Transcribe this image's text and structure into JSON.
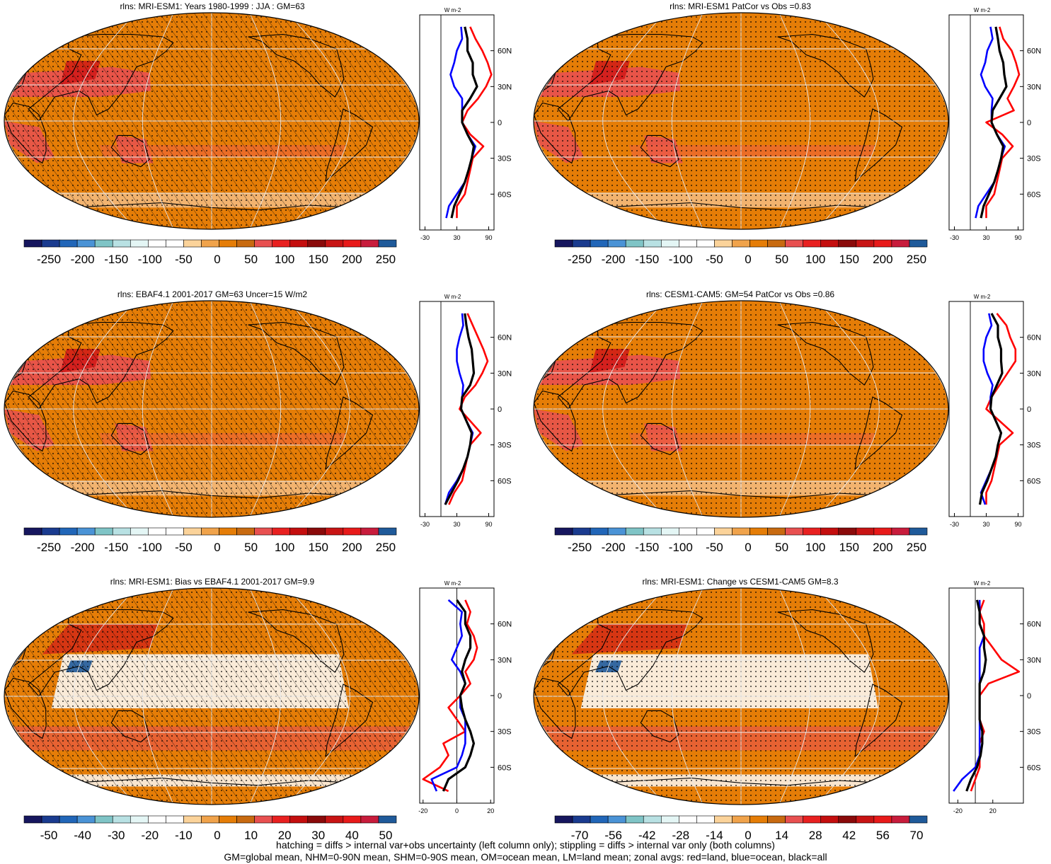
{
  "units_label": "W m-2",
  "lat_ticks": [
    "60N",
    "30N",
    "0",
    "30S",
    "60S"
  ],
  "colors": {
    "ocean_fill": "#E57D07",
    "land_outline": "#000000",
    "grid": "#E8E8E8",
    "zonal_land": "#FF0000",
    "zonal_ocean": "#0000FF",
    "zonal_all": "#000000"
  },
  "palettes": {
    "abs": [
      "#16165E",
      "#1A3B8F",
      "#2166B8",
      "#4A93D6",
      "#7FC4C6",
      "#B8E1E3",
      "#E4F6F5",
      "#FFFFFF",
      "#FFFFFF",
      "#FBD39A",
      "#F0A34B",
      "#E57D07",
      "#C86A10",
      "#E85050",
      "#E82020",
      "#C40E0E",
      "#8A0A0A",
      "#C81414",
      "#E81A1A",
      "#C81C3C",
      "#1F5A9A"
    ],
    "diff": [
      "#16165E",
      "#1A3B8F",
      "#2166B8",
      "#4A93D6",
      "#7FC4C6",
      "#B8E1E3",
      "#E4F6F5",
      "#FFFFFF",
      "#FFFFFF",
      "#FBD39A",
      "#F0A34B",
      "#E57D07",
      "#C86A10",
      "#E85050",
      "#E82020",
      "#C40E0E",
      "#8A0A0A",
      "#C81414",
      "#E81A1A",
      "#C81C3C",
      "#1F5A9A"
    ]
  },
  "panels": [
    {
      "title": "rlns: MRI-ESM1: Years 1980-1999 : JJA : GM=63",
      "hatched": true,
      "style": "abs",
      "cbar_labels": [
        "-250",
        "-200",
        "-150",
        "-100",
        "-50",
        "0",
        "50",
        "100",
        "150",
        "200",
        "250"
      ],
      "zonal_ticks": [
        "-30",
        "30",
        "90"
      ],
      "zonal_xlim": [
        -40,
        100
      ]
    },
    {
      "title": "rlns: MRI-ESM1 PatCor vs Obs =0.83",
      "hatched": false,
      "style": "abs",
      "cbar_labels": [
        "-250",
        "-200",
        "-150",
        "-100",
        "-50",
        "0",
        "50",
        "100",
        "150",
        "200",
        "250"
      ],
      "zonal_ticks": [
        "-30",
        "30",
        "90"
      ],
      "zonal_xlim": [
        -40,
        100
      ]
    },
    {
      "title": "rlns: EBAF4.1 2001-2017 GM=63 Uncer=15 W/m2",
      "hatched": true,
      "style": "abs",
      "cbar_labels": [
        "-250",
        "-200",
        "-150",
        "-100",
        "-50",
        "0",
        "50",
        "100",
        "150",
        "200",
        "250"
      ],
      "zonal_ticks": [
        "-30",
        "30",
        "90"
      ],
      "zonal_xlim": [
        -40,
        100
      ]
    },
    {
      "title": "rlns: CESM1-CAM5: GM=54 PatCor vs Obs =0.86",
      "hatched": false,
      "style": "abs",
      "cbar_labels": [
        "-250",
        "-200",
        "-150",
        "-100",
        "-50",
        "0",
        "50",
        "100",
        "150",
        "200",
        "250"
      ],
      "zonal_ticks": [
        "-30",
        "30",
        "90"
      ],
      "zonal_xlim": [
        -40,
        100
      ]
    },
    {
      "title": "rlns: MRI-ESM1: Bias vs EBAF4.1 2001-2017 GM=9.9",
      "hatched": true,
      "style": "diff",
      "cbar_labels": [
        "-50",
        "-40",
        "-30",
        "-20",
        "-10",
        "0",
        "10",
        "20",
        "30",
        "40",
        "50"
      ],
      "zonal_ticks": [
        "-20",
        "0",
        "20"
      ],
      "zonal_xlim": [
        -22,
        22
      ]
    },
    {
      "title": "rlns: MRI-ESM1: Change vs CESM1-CAM5 GM=8.3",
      "hatched": false,
      "style": "diff",
      "cbar_labels": [
        "-70",
        "-56",
        "-42",
        "-28",
        "-14",
        "0",
        "14",
        "28",
        "42",
        "56",
        "70"
      ],
      "zonal_ticks": [
        "-20",
        "20"
      ],
      "zonal_xlim": [
        -30,
        55
      ]
    }
  ],
  "chart_data": [
    {
      "type": "line",
      "title": "rlns: MRI-ESM1: Years 1980-1999 : JJA : GM=63",
      "xlabel": "W m-2",
      "ylabel": "",
      "x_ticks": [
        "-30",
        "30",
        "90"
      ],
      "y_ticks": [
        "60N",
        "30N",
        "0",
        "30S",
        "60S"
      ],
      "ylim": [
        -90,
        90
      ],
      "series": [
        {
          "lat": [
            80,
            70,
            60,
            50,
            40,
            30,
            20,
            10,
            0,
            -10,
            -20,
            -30,
            -40,
            -50,
            -60,
            -70,
            -80
          ],
          "values": [
            55,
            65,
            78,
            88,
            95,
            85,
            70,
            50,
            40,
            55,
            80,
            60,
            55,
            50,
            45,
            30,
            30
          ]
        },
        {
          "lat": [
            80,
            70,
            60,
            50,
            40,
            30,
            20,
            10,
            0,
            -10,
            -20,
            -30,
            -40,
            -50,
            -60,
            -70,
            -80
          ],
          "values": [
            38,
            40,
            30,
            25,
            18,
            25,
            40,
            40,
            40,
            50,
            65,
            58,
            52,
            45,
            30,
            15,
            10
          ]
        },
        {
          "lat": [
            80,
            70,
            60,
            50,
            40,
            30,
            20,
            10,
            0,
            -10,
            -20,
            -30,
            -40,
            -50,
            -60,
            -70,
            -80
          ],
          "values": [
            45,
            50,
            50,
            60,
            60,
            68,
            55,
            40,
            40,
            50,
            62,
            58,
            52,
            45,
            35,
            25,
            20
          ]
        }
      ]
    },
    {
      "type": "line",
      "title": "rlns: MRI-ESM1 PatCor vs Obs =0.83",
      "xlabel": "W m-2",
      "ylabel": "",
      "x_ticks": [
        "-30",
        "30",
        "90"
      ],
      "y_ticks": [
        "60N",
        "30N",
        "0",
        "30S",
        "60S"
      ],
      "ylim": [
        -90,
        90
      ],
      "series": [
        {
          "lat": [
            80,
            70,
            60,
            50,
            40,
            30,
            20,
            10,
            0,
            -10,
            -20,
            -30,
            -40,
            -50,
            -60,
            -70,
            -80
          ],
          "values": [
            55,
            62,
            78,
            86,
            92,
            82,
            70,
            82,
            30,
            60,
            80,
            60,
            55,
            50,
            45,
            30,
            30
          ]
        },
        {
          "lat": [
            80,
            70,
            60,
            50,
            40,
            30,
            20,
            10,
            0,
            -10,
            -20,
            -30,
            -40,
            -50,
            -60,
            -70,
            -80
          ],
          "values": [
            38,
            42,
            32,
            28,
            20,
            28,
            42,
            40,
            40,
            50,
            65,
            58,
            52,
            45,
            30,
            15,
            10
          ]
        },
        {
          "lat": [
            80,
            70,
            60,
            50,
            40,
            30,
            20,
            10,
            0,
            -10,
            -20,
            -30,
            -40,
            -50,
            -60,
            -70,
            -80
          ],
          "values": [
            48,
            52,
            55,
            62,
            64,
            68,
            55,
            42,
            40,
            50,
            62,
            58,
            52,
            45,
            35,
            25,
            20
          ]
        }
      ]
    },
    {
      "type": "line",
      "title": "rlns: EBAF4.1 2001-2017 GM=63 Uncer=15 W/m2",
      "xlabel": "W m-2",
      "ylabel": "",
      "x_ticks": [
        "-30",
        "30",
        "90"
      ],
      "y_ticks": [
        "60N",
        "30N",
        "0",
        "30S",
        "60S"
      ],
      "ylim": [
        -90,
        90
      ],
      "series": [
        {
          "lat": [
            80,
            70,
            60,
            50,
            40,
            30,
            20,
            10,
            0,
            -10,
            -20,
            -30,
            -40,
            -50,
            -60,
            -70,
            -80
          ],
          "values": [
            50,
            60,
            70,
            80,
            88,
            78,
            65,
            45,
            35,
            55,
            75,
            55,
            50,
            45,
            40,
            25,
            15
          ]
        },
        {
          "lat": [
            80,
            70,
            60,
            50,
            40,
            30,
            20,
            10,
            0,
            -10,
            -20,
            -30,
            -40,
            -50,
            -60,
            -70,
            -80
          ],
          "values": [
            40,
            42,
            35,
            30,
            30,
            35,
            42,
            40,
            38,
            48,
            60,
            55,
            50,
            42,
            30,
            15,
            8
          ]
        },
        {
          "lat": [
            80,
            70,
            60,
            50,
            40,
            30,
            20,
            10,
            0,
            -10,
            -20,
            -30,
            -40,
            -50,
            -60,
            -70,
            -80
          ],
          "values": [
            45,
            48,
            52,
            58,
            60,
            62,
            55,
            40,
            38,
            48,
            58,
            55,
            50,
            42,
            32,
            20,
            8
          ]
        }
      ]
    },
    {
      "type": "line",
      "title": "rlns: CESM1-CAM5: GM=54 PatCor vs Obs =0.86",
      "xlabel": "W m-2",
      "ylabel": "",
      "x_ticks": [
        "-30",
        "30",
        "90"
      ],
      "y_ticks": [
        "60N",
        "30N",
        "0",
        "30S",
        "60S"
      ],
      "ylim": [
        -90,
        90
      ],
      "series": [
        {
          "lat": [
            80,
            70,
            60,
            50,
            40,
            30,
            20,
            10,
            0,
            -10,
            -20,
            -30,
            -40,
            -50,
            -60,
            -70,
            -80
          ],
          "values": [
            50,
            68,
            75,
            85,
            85,
            70,
            55,
            40,
            30,
            55,
            80,
            55,
            50,
            45,
            40,
            30,
            30
          ]
        },
        {
          "lat": [
            80,
            70,
            60,
            50,
            40,
            30,
            20,
            10,
            0,
            -10,
            -20,
            -30,
            -40,
            -50,
            -60,
            -70,
            -80
          ],
          "values": [
            35,
            40,
            30,
            25,
            25,
            32,
            42,
            38,
            38,
            48,
            58,
            52,
            48,
            40,
            30,
            20,
            28
          ]
        },
        {
          "lat": [
            80,
            70,
            60,
            50,
            40,
            30,
            20,
            10,
            0,
            -10,
            -20,
            -30,
            -40,
            -50,
            -60,
            -70,
            -80
          ],
          "values": [
            40,
            52,
            52,
            58,
            58,
            60,
            50,
            40,
            38,
            48,
            58,
            52,
            48,
            40,
            32,
            22,
            18
          ]
        }
      ]
    },
    {
      "type": "line",
      "title": "rlns: MRI-ESM1: Bias vs EBAF4.1 2001-2017 GM=9.9",
      "xlabel": "W m-2",
      "ylabel": "",
      "x_ticks": [
        "-20",
        "0",
        "20"
      ],
      "y_ticks": [
        "60N",
        "30N",
        "0",
        "30S",
        "60S"
      ],
      "ylim": [
        -90,
        90
      ],
      "series": [
        {
          "lat": [
            80,
            70,
            60,
            50,
            40,
            30,
            20,
            10,
            0,
            -10,
            -20,
            -30,
            -40,
            -50,
            -60,
            -70,
            -80
          ],
          "values": [
            5,
            8,
            6,
            10,
            12,
            10,
            5,
            8,
            2,
            -5,
            0,
            5,
            -8,
            -5,
            -10,
            -20,
            -5
          ]
        },
        {
          "lat": [
            80,
            70,
            60,
            50,
            40,
            30,
            20,
            10,
            0,
            -10,
            -20,
            -30,
            -40,
            -50,
            -60,
            -70,
            -80
          ],
          "values": [
            -5,
            3,
            2,
            3,
            0,
            -3,
            2,
            5,
            2,
            2,
            5,
            5,
            5,
            3,
            0,
            -15,
            -12
          ]
        },
        {
          "lat": [
            80,
            70,
            60,
            50,
            40,
            30,
            20,
            10,
            0,
            -10,
            -20,
            -30,
            -40,
            -50,
            -60,
            -70,
            -80
          ],
          "values": [
            0,
            5,
            5,
            8,
            8,
            5,
            3,
            5,
            2,
            3,
            5,
            8,
            10,
            8,
            5,
            -5,
            -8
          ]
        }
      ]
    },
    {
      "type": "line",
      "title": "rlns: MRI-ESM1: Change vs CESM1-CAM5 GM=8.3",
      "xlabel": "W m-2",
      "ylabel": "",
      "x_ticks": [
        "-20",
        "20"
      ],
      "y_ticks": [
        "60N",
        "30N",
        "0",
        "30S",
        "60S"
      ],
      "ylim": [
        -90,
        90
      ],
      "series": [
        {
          "lat": [
            80,
            70,
            60,
            50,
            40,
            30,
            20,
            10,
            0,
            -10,
            -20,
            -30,
            -40,
            -50,
            -60,
            -70,
            -80
          ],
          "values": [
            10,
            5,
            10,
            10,
            20,
            30,
            50,
            15,
            5,
            5,
            5,
            10,
            5,
            5,
            5,
            0,
            -5
          ]
        },
        {
          "lat": [
            80,
            70,
            60,
            50,
            40,
            30,
            20,
            10,
            0,
            -10,
            -20,
            -30,
            -40,
            -50,
            -60,
            -70,
            -80
          ],
          "values": [
            5,
            5,
            5,
            10,
            5,
            5,
            5,
            5,
            5,
            5,
            5,
            5,
            5,
            5,
            0,
            -15,
            -25
          ]
        },
        {
          "lat": [
            80,
            70,
            60,
            50,
            40,
            30,
            20,
            10,
            0,
            -10,
            -20,
            -30,
            -40,
            -50,
            -60,
            -70,
            -80
          ],
          "values": [
            2,
            5,
            5,
            10,
            10,
            12,
            10,
            5,
            5,
            5,
            5,
            8,
            8,
            6,
            2,
            -5,
            -10
          ]
        }
      ]
    }
  ],
  "footnotes": [
    "hatching = diffs > internal var+obs uncertainty (left column only); stippling = diffs > internal var only (both columns)",
    "GM=global mean, NHM=0-90N mean, SHM=0-90S mean, OM=ocean mean, LM=land mean; zonal avgs: red=land, blue=ocean, black=all"
  ]
}
